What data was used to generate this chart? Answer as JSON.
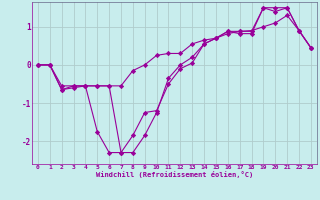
{
  "xlabel": "Windchill (Refroidissement éolien,°C)",
  "background_color": "#c8eded",
  "line_color": "#990099",
  "grid_color": "#b0cccc",
  "xmin": -0.5,
  "xmax": 23.5,
  "ymin": -2.6,
  "ymax": 1.65,
  "yticks": [
    -2,
    -1,
    0,
    1
  ],
  "xticks": [
    0,
    1,
    2,
    3,
    4,
    5,
    6,
    7,
    8,
    9,
    10,
    11,
    12,
    13,
    14,
    15,
    16,
    17,
    18,
    19,
    20,
    21,
    22,
    23
  ],
  "series": [
    [
      0.0,
      0.0,
      -0.65,
      -0.55,
      -0.55,
      -0.55,
      -0.55,
      -0.55,
      -0.15,
      0.0,
      0.25,
      0.3,
      0.3,
      0.55,
      0.65,
      0.7,
      0.82,
      0.88,
      0.9,
      1.0,
      1.1,
      1.3,
      0.9,
      0.45
    ],
    [
      0.0,
      0.0,
      -0.55,
      -0.55,
      -0.55,
      -1.75,
      -2.3,
      -2.3,
      -1.85,
      -1.25,
      -1.2,
      -0.5,
      -0.1,
      0.05,
      0.55,
      0.7,
      0.88,
      0.88,
      0.88,
      1.5,
      1.4,
      1.5,
      0.9,
      0.45
    ],
    [
      0.0,
      0.0,
      -0.65,
      -0.6,
      -0.55,
      -0.55,
      -0.55,
      -2.3,
      -2.3,
      -1.85,
      -1.25,
      -0.35,
      0.0,
      0.2,
      0.55,
      0.7,
      0.88,
      0.82,
      0.82,
      1.5,
      1.5,
      1.5,
      0.9,
      0.45
    ]
  ]
}
